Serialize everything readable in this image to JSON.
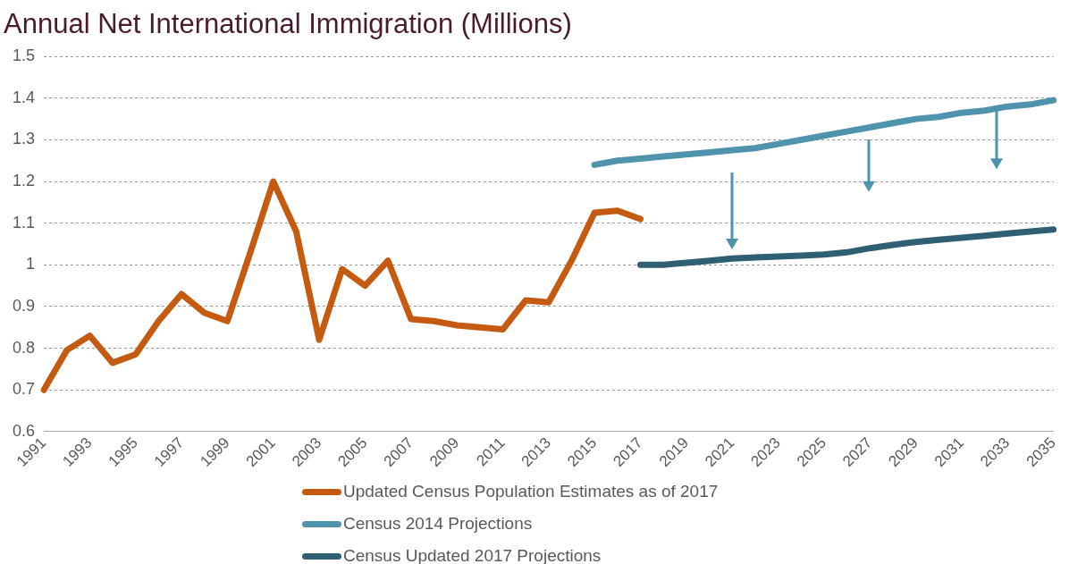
{
  "chart_data": {
    "type": "line",
    "title": "Annual Net International Immigration (Millions)",
    "categories": [
      "1991",
      null,
      "1993",
      null,
      "1995",
      null,
      "1997",
      null,
      "1999",
      null,
      "2001",
      null,
      "2003",
      null,
      "2005",
      null,
      "2007",
      null,
      "2009",
      null,
      "2011",
      null,
      "2013",
      null,
      "2015",
      null,
      "2017",
      null,
      "2019",
      null,
      "2021",
      null,
      "2023",
      null,
      "2025",
      null,
      "2027",
      null,
      "2029",
      null,
      "2031",
      null,
      "2033",
      null,
      "2035"
    ],
    "series": [
      {
        "name": "Updated Census Population Estimates as of 2017",
        "color": "#c55a11",
        "values": [
          0.7,
          0.795,
          0.83,
          0.765,
          0.785,
          0.865,
          0.93,
          0.885,
          0.865,
          1.03,
          1.2,
          1.08,
          0.82,
          0.99,
          0.95,
          1.01,
          0.87,
          0.865,
          0.855,
          0.85,
          0.845,
          0.915,
          0.91,
          1.01,
          1.125,
          1.13,
          1.11,
          null,
          null,
          null,
          null,
          null,
          null,
          null,
          null,
          null,
          null,
          null,
          null,
          null,
          null,
          null,
          null,
          null,
          null
        ]
      },
      {
        "name": "Census 2014 Projections",
        "color": "#4f93ad",
        "values": [
          null,
          null,
          null,
          null,
          null,
          null,
          null,
          null,
          null,
          null,
          null,
          null,
          null,
          null,
          null,
          null,
          null,
          null,
          null,
          null,
          null,
          null,
          null,
          null,
          1.24,
          1.25,
          1.255,
          1.26,
          1.265,
          1.27,
          1.275,
          1.28,
          1.29,
          1.3,
          1.31,
          1.32,
          1.33,
          1.34,
          1.35,
          1.355,
          1.365,
          1.37,
          1.38,
          1.385,
          1.395
        ]
      },
      {
        "name": "Census Updated 2017 Projections",
        "color": "#2f5f73",
        "values": [
          null,
          null,
          null,
          null,
          null,
          null,
          null,
          null,
          null,
          null,
          null,
          null,
          null,
          null,
          null,
          null,
          null,
          null,
          null,
          null,
          null,
          null,
          null,
          null,
          null,
          null,
          1.0,
          1.0,
          1.005,
          1.01,
          1.015,
          1.018,
          1.02,
          1.022,
          1.025,
          1.03,
          1.04,
          1.048,
          1.055,
          1.06,
          1.065,
          1.07,
          1.075,
          1.08,
          1.085
        ]
      }
    ],
    "ylim": [
      0.6,
      1.5
    ],
    "yticks": [
      0.6,
      0.7,
      0.8,
      0.9,
      1,
      1.1,
      1.2,
      1.3,
      1.4,
      1.5
    ],
    "grid": "y",
    "legend": "bottom",
    "marker": "none",
    "line_style": "solid"
  }
}
